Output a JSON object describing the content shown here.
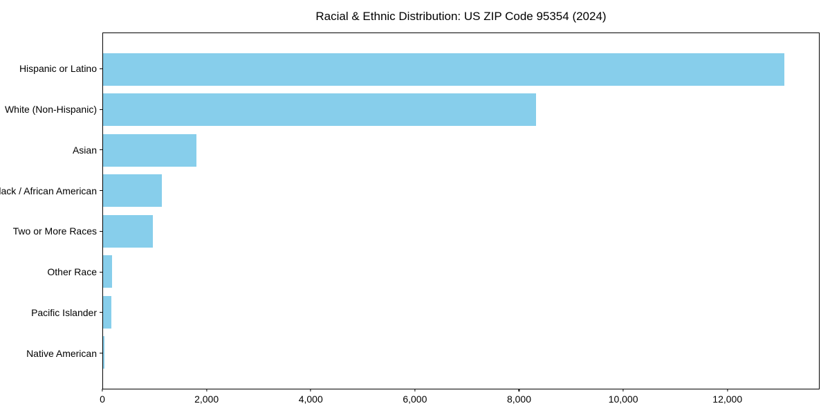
{
  "chart_data": {
    "type": "bar",
    "orientation": "horizontal",
    "title": "Racial & Ethnic Distribution: US ZIP Code 95354 (2024)",
    "categories": [
      "Hispanic or Latino",
      "White (Non-Hispanic)",
      "Asian",
      "Black / African American",
      "Two or More Races",
      "Other Race",
      "Pacific Islander",
      "Native American"
    ],
    "values": [
      13110,
      8330,
      1790,
      1130,
      955,
      175,
      160,
      25
    ],
    "xlabel": "",
    "ylabel": "",
    "xlim": [
      0,
      13770
    ],
    "xticks": [
      0,
      2000,
      4000,
      6000,
      8000,
      10000,
      12000
    ],
    "xtick_labels": [
      "0",
      "2,000",
      "4,000",
      "6,000",
      "8,000",
      "10,000",
      "12,000"
    ],
    "bar_color": "#87CEEB",
    "axis_color": "#000000",
    "background": "#FFFFFF",
    "grid": false,
    "legend": "none"
  }
}
